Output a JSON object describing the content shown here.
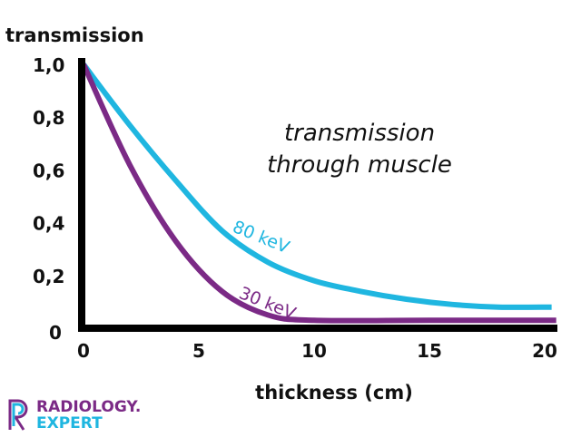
{
  "chart_data": {
    "type": "line",
    "title": "transmission\nthrough muscle",
    "title_lines": [
      "transmission",
      "through muscle"
    ],
    "xlabel": "thickness (cm)",
    "ylabel": "transmission",
    "xlim": [
      0,
      20.5
    ],
    "ylim": [
      0,
      1.0
    ],
    "xticks": [
      "0",
      "5",
      "10",
      "15",
      "20"
    ],
    "xtick_values": [
      0,
      5,
      10,
      15,
      20
    ],
    "yticks": [
      "0",
      "0,2",
      "0,4",
      "0,6",
      "0,8",
      "1,0"
    ],
    "ytick_values": [
      0,
      0.2,
      0.4,
      0.6,
      0.8,
      1.0
    ],
    "grid": false,
    "legend": "inline labels",
    "series": [
      {
        "name": "80 keV",
        "color": "#1fb6e0",
        "x": [
          0,
          2,
          4,
          6,
          8,
          10,
          12,
          14,
          16,
          18,
          20.3
        ],
        "y": [
          1.0,
          0.77,
          0.56,
          0.37,
          0.25,
          0.18,
          0.14,
          0.11,
          0.09,
          0.08,
          0.08
        ]
      },
      {
        "name": "30 keV",
        "color": "#7b2a86",
        "x": [
          0,
          2,
          4,
          6,
          8,
          10,
          15,
          20.5
        ],
        "y": [
          1.0,
          0.62,
          0.33,
          0.14,
          0.05,
          0.03,
          0.03,
          0.03
        ]
      }
    ]
  },
  "logo": {
    "line1": "RADIOLOGY.",
    "line2": "EXPERT",
    "color1": "#7b2a86",
    "color2": "#1fb6e0"
  }
}
